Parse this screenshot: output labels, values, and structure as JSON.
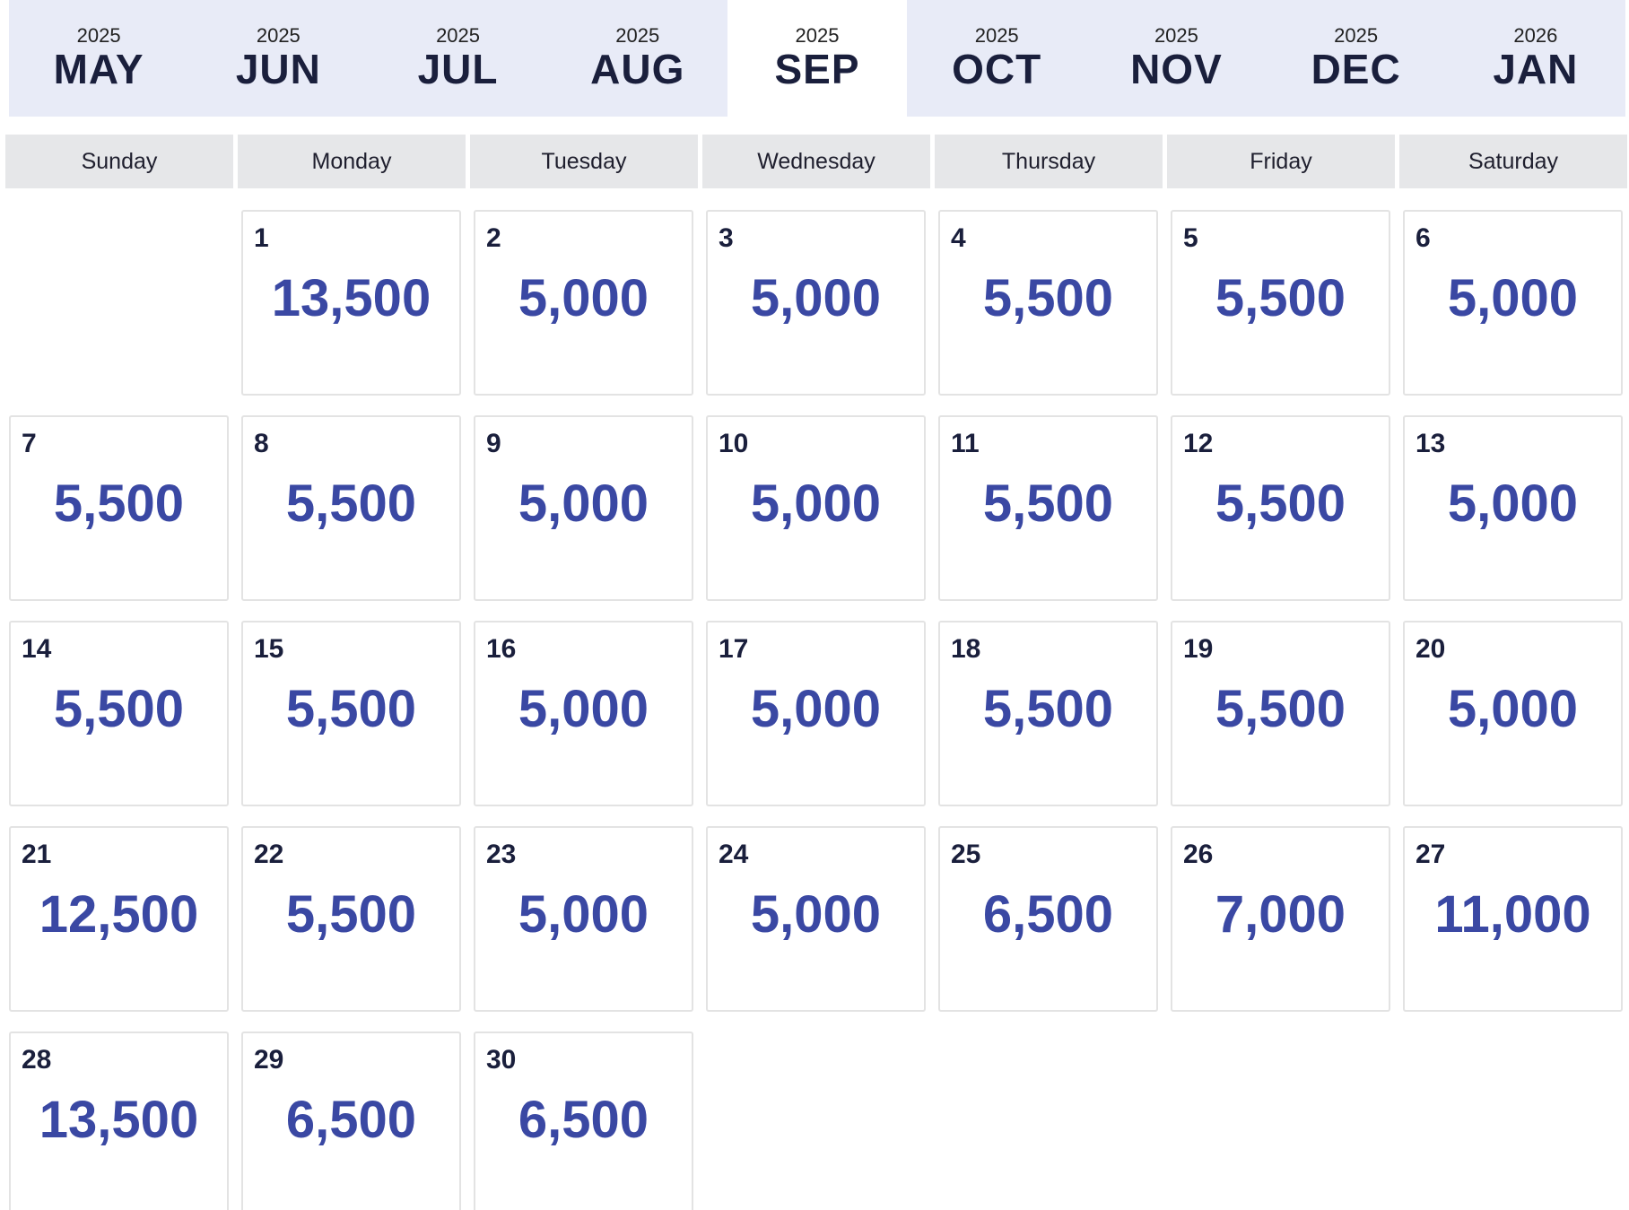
{
  "months": [
    {
      "year": "2025",
      "name": "MAY",
      "active": false
    },
    {
      "year": "2025",
      "name": "JUN",
      "active": false
    },
    {
      "year": "2025",
      "name": "JUL",
      "active": false
    },
    {
      "year": "2025",
      "name": "AUG",
      "active": false
    },
    {
      "year": "2025",
      "name": "SEP",
      "active": true
    },
    {
      "year": "2025",
      "name": "OCT",
      "active": false
    },
    {
      "year": "2025",
      "name": "NOV",
      "active": false
    },
    {
      "year": "2025",
      "name": "DEC",
      "active": false
    },
    {
      "year": "2026",
      "name": "JAN",
      "active": false
    }
  ],
  "weekdays": [
    "Sunday",
    "Monday",
    "Tuesday",
    "Wednesday",
    "Thursday",
    "Friday",
    "Saturday"
  ],
  "calendar": {
    "leading_empty_days": 1,
    "days": [
      {
        "day": "1",
        "price": "13,500"
      },
      {
        "day": "2",
        "price": "5,000"
      },
      {
        "day": "3",
        "price": "5,000"
      },
      {
        "day": "4",
        "price": "5,500"
      },
      {
        "day": "5",
        "price": "5,500"
      },
      {
        "day": "6",
        "price": "5,000"
      },
      {
        "day": "7",
        "price": "5,500"
      },
      {
        "day": "8",
        "price": "5,500"
      },
      {
        "day": "9",
        "price": "5,000"
      },
      {
        "day": "10",
        "price": "5,000"
      },
      {
        "day": "11",
        "price": "5,500"
      },
      {
        "day": "12",
        "price": "5,500"
      },
      {
        "day": "13",
        "price": "5,000"
      },
      {
        "day": "14",
        "price": "5,500"
      },
      {
        "day": "15",
        "price": "5,500"
      },
      {
        "day": "16",
        "price": "5,000"
      },
      {
        "day": "17",
        "price": "5,000"
      },
      {
        "day": "18",
        "price": "5,500"
      },
      {
        "day": "19",
        "price": "5,500"
      },
      {
        "day": "20",
        "price": "5,000"
      },
      {
        "day": "21",
        "price": "12,500"
      },
      {
        "day": "22",
        "price": "5,500"
      },
      {
        "day": "23",
        "price": "5,000"
      },
      {
        "day": "24",
        "price": "5,000"
      },
      {
        "day": "25",
        "price": "6,500"
      },
      {
        "day": "26",
        "price": "7,000"
      },
      {
        "day": "27",
        "price": "11,000"
      },
      {
        "day": "28",
        "price": "13,500"
      },
      {
        "day": "29",
        "price": "6,500"
      },
      {
        "day": "30",
        "price": "6,500"
      }
    ]
  },
  "colors": {
    "tab_background": "#e8ebf7",
    "active_tab_background": "#ffffff",
    "weekday_background": "#e6e7e9",
    "price_color": "#3a48a3",
    "day_number_color": "#1a1f3c"
  }
}
